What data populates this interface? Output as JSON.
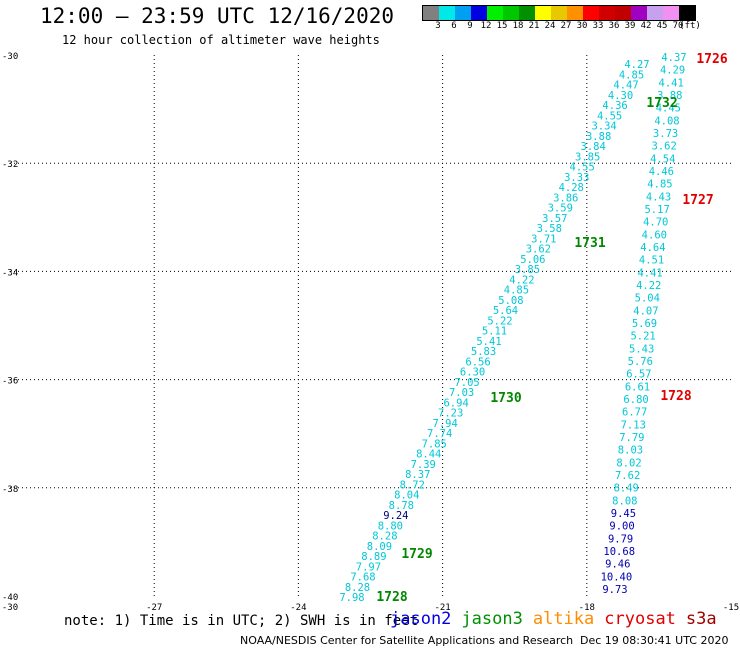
{
  "header": {
    "title": "12:00 – 23:59 UTC 12/16/2020",
    "subtitle": "12 hour collection of altimeter wave heights"
  },
  "colorbar": {
    "colors": [
      "#808080",
      "#00e8e8",
      "#00a0f0",
      "#0000e0",
      "#00f000",
      "#00c800",
      "#009000",
      "#ffff00",
      "#e8c800",
      "#ff9000",
      "#ff0000",
      "#d00000",
      "#c00000",
      "#a000c0",
      "#c8a0f0",
      "#f090f0",
      "#000000"
    ],
    "labels": [
      "3",
      "6",
      "9",
      "12",
      "15",
      "18",
      "21",
      "24",
      "27",
      "30",
      "33",
      "36",
      "39",
      "42",
      "45",
      "70",
      "(ft)"
    ]
  },
  "axes": {
    "x_ticks": [
      "-30",
      "-27",
      "-24",
      "-21",
      "-18",
      "-15"
    ],
    "y_ticks": [
      "-30",
      "-32",
      "-34",
      "-36",
      "-38",
      "-40"
    ],
    "x_range": [
      -30,
      -15
    ],
    "y_range": [
      -40,
      -30
    ]
  },
  "passes": [
    {
      "label": "1726",
      "mission": "cryosat",
      "color": "#e00000"
    },
    {
      "label": "1727",
      "mission": "cryosat",
      "color": "#e00000"
    },
    {
      "label": "1728",
      "mission": "cryosat",
      "color": "#e00000"
    },
    {
      "label": "1728",
      "mission": "jason3",
      "color": "#008800"
    },
    {
      "label": "1729",
      "mission": "jason3",
      "color": "#008800"
    },
    {
      "label": "1730",
      "mission": "jason3",
      "color": "#008800"
    },
    {
      "label": "1731",
      "mission": "jason3",
      "color": "#008800"
    },
    {
      "label": "1732",
      "mission": "jason3",
      "color": "#008800"
    }
  ],
  "track_west": {
    "color_default": "#00c8d8",
    "values": [
      "4.27",
      "4.85",
      "4.47",
      "4.30",
      "4.36",
      "4.55",
      "3.34",
      "3.88",
      "3.84",
      "3.85",
      "4.55",
      "3.33",
      "4.28",
      "3.86",
      "3.59",
      "3.57",
      "3.58",
      "3.71",
      "3.62",
      "5.06",
      "3.85",
      "4.22",
      "4.85",
      "5.08",
      "5.64",
      "5.22",
      "5.11",
      "5.41",
      "5.83",
      "6.56",
      "6.30",
      "7.05",
      "7.03",
      "6.94",
      "7.23",
      "7.94",
      "7.74",
      "7.85",
      "8.44",
      "7.39",
      "8.37",
      "8.72",
      "8.04",
      "8.78",
      "9.24",
      "8.80",
      "8.28",
      "8.09",
      "8.89",
      "7.97",
      "7.68",
      "8.28",
      "7.98"
    ],
    "dark_indices": [
      14
    ]
  },
  "track_east": {
    "values": [
      "4.37",
      "4.29",
      "4.41",
      "3.88",
      "4.45",
      "4.08",
      "3.73",
      "3.62",
      "4.54",
      "4.46",
      "4.85",
      "4.43",
      "5.17",
      "4.70",
      "4.60",
      "4.64",
      "4.51",
      "4.41",
      "4.22",
      "5.04",
      "4.07",
      "5.69",
      "5.21",
      "5.43",
      "5.76",
      "6.57",
      "6.61",
      "6.80",
      "6.77",
      "7.13",
      "7.79",
      "8.03",
      "8.02",
      "7.62",
      "8.49",
      "8.08",
      "9.45",
      "9.00",
      "9.79",
      "10.68",
      "9.46",
      "10.40",
      "9.73"
    ],
    "blue_from": 36
  },
  "note": "note:  1) Time is in UTC;  2) SWH is in feet",
  "legend": [
    {
      "name": "jason2",
      "color": "#0000e0"
    },
    {
      "name": "jason3",
      "color": "#009000"
    },
    {
      "name": "altika",
      "color": "#ff8c00"
    },
    {
      "name": "cryosat",
      "color": "#e00000"
    },
    {
      "name": "s3a",
      "color": "#a00000"
    }
  ],
  "footer": {
    "credit": "NOAA/NESDIS Center for Satellite Applications and Research",
    "timestamp": "Dec 19 08:30:41 UTC 2020"
  }
}
